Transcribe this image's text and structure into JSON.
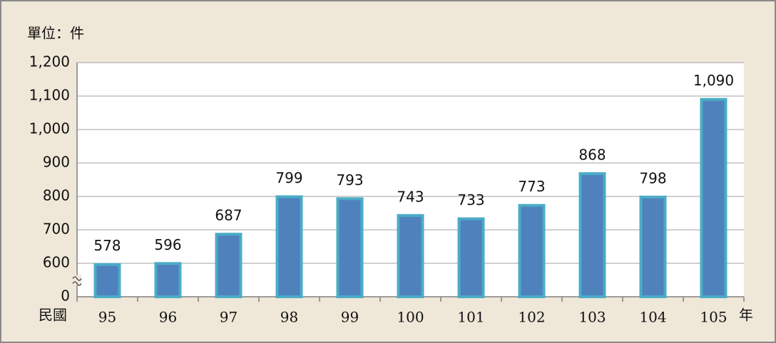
{
  "chart_data": {
    "type": "bar",
    "unit_label": "單位：件",
    "x_label_prefix": "民國",
    "x_label_suffix": "年",
    "categories": [
      "95",
      "96",
      "97",
      "98",
      "99",
      "100",
      "101",
      "102",
      "103",
      "104",
      "105"
    ],
    "values": [
      578,
      596,
      687,
      799,
      793,
      743,
      733,
      773,
      868,
      798,
      1090
    ],
    "value_labels": [
      "578",
      "596",
      "687",
      "799",
      "793",
      "743",
      "733",
      "773",
      "868",
      "798",
      "1,090"
    ],
    "color": "#4f81bd",
    "edge_color": "#4bacc6",
    "ylim": [
      0,
      1200
    ],
    "yticks": [
      0,
      600,
      700,
      800,
      900,
      {
        "value": 1000,
        "label": "1,000"
      },
      {
        "value": 1100,
        "label": "1,100"
      },
      {
        "value": 1200,
        "label": "1,200"
      }
    ],
    "axis_break": true,
    "grid": true
  }
}
